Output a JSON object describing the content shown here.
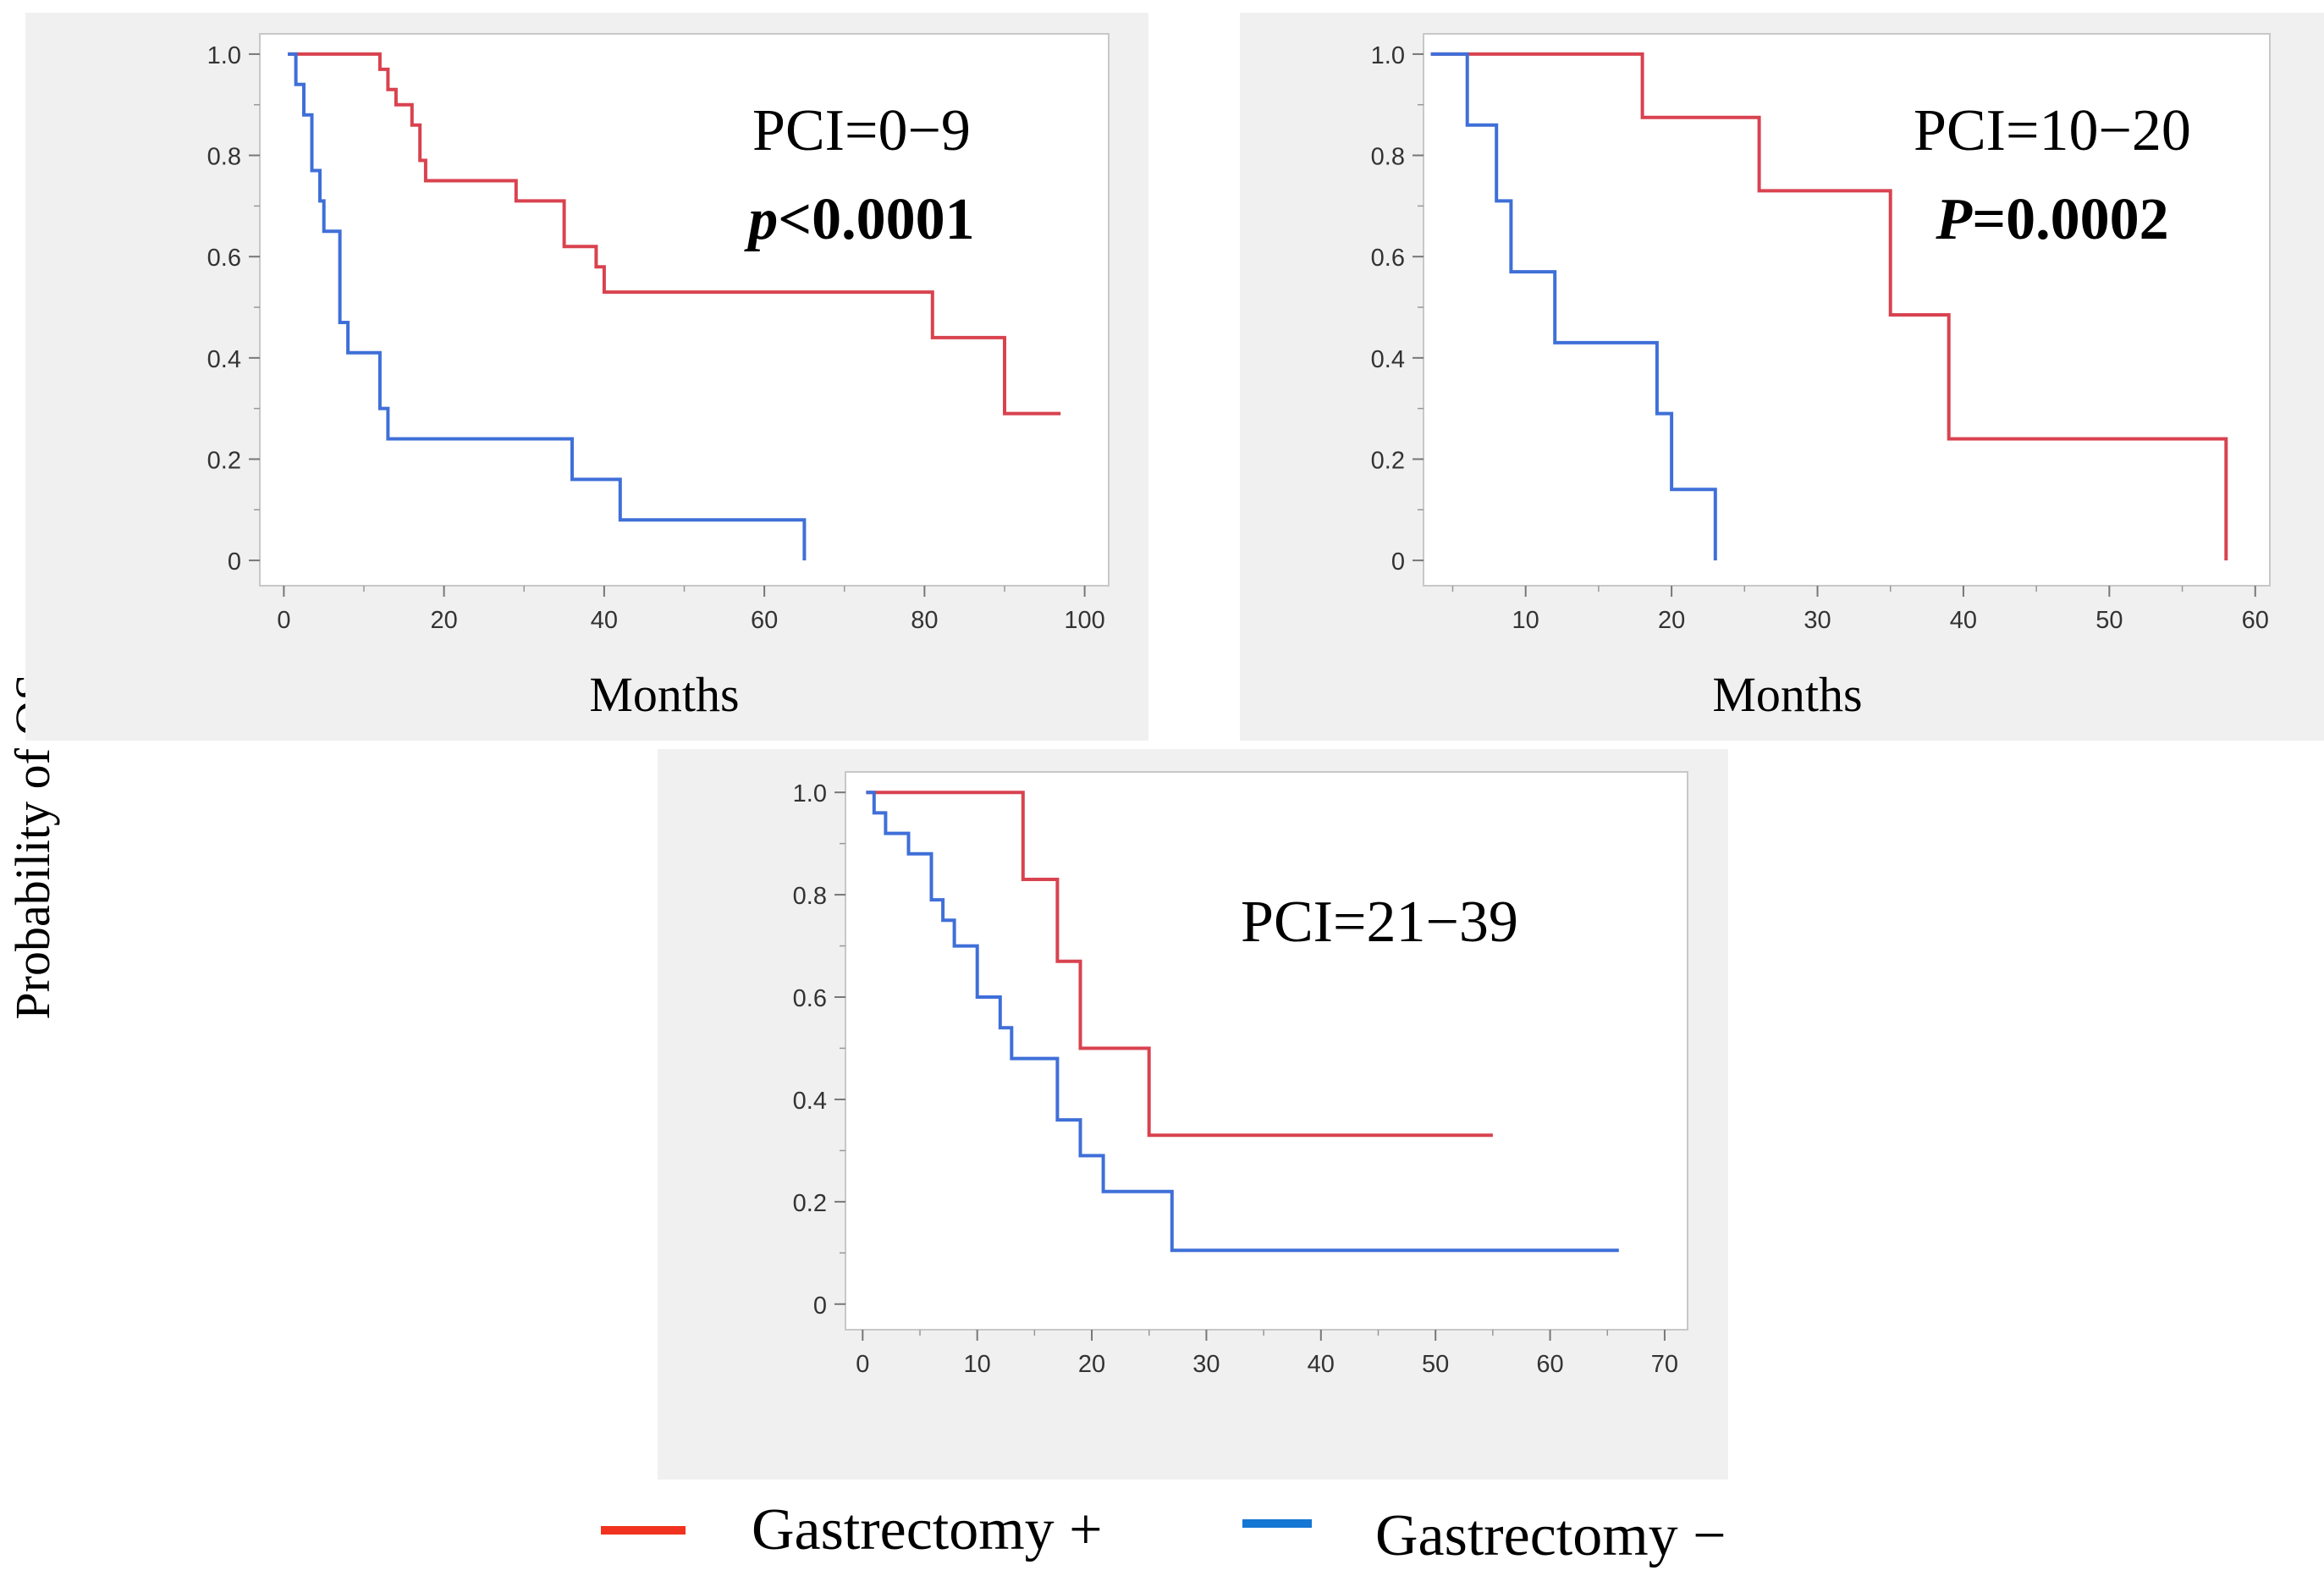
{
  "figure": {
    "ylabel": "Probability of OS",
    "colors": {
      "gastrectomy_plus": "#d9424f",
      "gastrectomy_minus": "#3f6fd8",
      "legend_plus": "#f0321e",
      "legend_minus": "#1577d4",
      "panel_bg": "#f0f0f0",
      "plot_bg": "#ffffff",
      "frame": "#c8c8c8",
      "tick_text": "#333333"
    },
    "legend": {
      "items": [
        {
          "label": "Gastrectomy +",
          "color_key": "legend_plus"
        },
        {
          "label": "Gastrectomy −",
          "color_key": "legend_minus"
        }
      ]
    }
  },
  "chart_data": [
    {
      "type": "line",
      "step": true,
      "title": "PCI=0−9",
      "pvalue_prefix": "p",
      "pvalue_rest": "<0.0001",
      "xlabel": "Months",
      "ylabel": "Probability of OS",
      "xlim": [
        -3,
        103
      ],
      "ylim": [
        -0.05,
        1.04
      ],
      "xticks": [
        0,
        20,
        40,
        60,
        80,
        100
      ],
      "xticklabels": [
        "0",
        "20",
        "40",
        "60",
        "80",
        "100"
      ],
      "xminor": [
        10,
        30,
        50,
        70,
        90
      ],
      "yticks": [
        0,
        0.2,
        0.4,
        0.6,
        0.8,
        1.0
      ],
      "yticklabels": [
        "0",
        "0.2",
        "0.4",
        "0.6",
        "0.8",
        "1.0"
      ],
      "yminor": [
        0.1,
        0.3,
        0.5,
        0.7,
        0.9
      ],
      "series": [
        {
          "name": "Gastrectomy +",
          "color_key": "gastrectomy_plus",
          "points": [
            [
              0.5,
              1.0
            ],
            [
              12,
              1.0
            ],
            [
              12,
              0.97
            ],
            [
              13,
              0.97
            ],
            [
              13,
              0.93
            ],
            [
              14,
              0.93
            ],
            [
              14,
              0.9
            ],
            [
              16,
              0.9
            ],
            [
              16,
              0.86
            ],
            [
              17,
              0.86
            ],
            [
              17,
              0.79
            ],
            [
              17.7,
              0.79
            ],
            [
              17.7,
              0.75
            ],
            [
              29,
              0.75
            ],
            [
              29,
              0.71
            ],
            [
              35,
              0.71
            ],
            [
              35,
              0.62
            ],
            [
              39,
              0.62
            ],
            [
              39,
              0.58
            ],
            [
              40,
              0.58
            ],
            [
              40,
              0.53
            ],
            [
              81,
              0.53
            ],
            [
              81,
              0.44
            ],
            [
              90,
              0.44
            ],
            [
              90,
              0.29
            ],
            [
              97,
              0.29
            ]
          ]
        },
        {
          "name": "Gastrectomy −",
          "color_key": "gastrectomy_minus",
          "points": [
            [
              0.5,
              1.0
            ],
            [
              1.5,
              1.0
            ],
            [
              1.5,
              0.94
            ],
            [
              2.5,
              0.94
            ],
            [
              2.5,
              0.88
            ],
            [
              3.5,
              0.88
            ],
            [
              3.5,
              0.77
            ],
            [
              4.5,
              0.77
            ],
            [
              4.5,
              0.71
            ],
            [
              5,
              0.71
            ],
            [
              5,
              0.65
            ],
            [
              7,
              0.65
            ],
            [
              7,
              0.47
            ],
            [
              8,
              0.47
            ],
            [
              8,
              0.41
            ],
            [
              12,
              0.41
            ],
            [
              12,
              0.3
            ],
            [
              13,
              0.3
            ],
            [
              13,
              0.24
            ],
            [
              36,
              0.24
            ],
            [
              36,
              0.16
            ],
            [
              42,
              0.16
            ],
            [
              42,
              0.08
            ],
            [
              65,
              0.08
            ],
            [
              65,
              0.0
            ]
          ]
        }
      ]
    },
    {
      "type": "line",
      "step": true,
      "title": "PCI=10−20",
      "pvalue_prefix": "P",
      "pvalue_rest": "=0.0002",
      "xlabel": "Months",
      "ylabel": "Probability of OS",
      "xlim": [
        3,
        61
      ],
      "ylim": [
        -0.05,
        1.04
      ],
      "xticks": [
        10,
        20,
        30,
        40,
        50,
        60
      ],
      "xticklabels": [
        "10",
        "20",
        "30",
        "40",
        "50",
        "60"
      ],
      "xminor": [
        5,
        15,
        25,
        35,
        45,
        55
      ],
      "yticks": [
        0,
        0.2,
        0.4,
        0.6,
        0.8,
        1.0
      ],
      "yticklabels": [
        "0",
        "0.2",
        "0.4",
        "0.6",
        "0.8",
        "1.0"
      ],
      "yminor": [
        0.1,
        0.3,
        0.5,
        0.7,
        0.9
      ],
      "series": [
        {
          "name": "Gastrectomy +",
          "color_key": "gastrectomy_plus",
          "points": [
            [
              3.5,
              1.0
            ],
            [
              18,
              1.0
            ],
            [
              18,
              0.875
            ],
            [
              26,
              0.875
            ],
            [
              26,
              0.73
            ],
            [
              35,
              0.73
            ],
            [
              35,
              0.485
            ],
            [
              39,
              0.485
            ],
            [
              39,
              0.24
            ],
            [
              58,
              0.24
            ],
            [
              58,
              0.0
            ]
          ]
        },
        {
          "name": "Gastrectomy −",
          "color_key": "gastrectomy_minus",
          "points": [
            [
              3.5,
              1.0
            ],
            [
              6,
              1.0
            ],
            [
              6,
              0.86
            ],
            [
              8,
              0.86
            ],
            [
              8,
              0.71
            ],
            [
              9,
              0.71
            ],
            [
              9,
              0.57
            ],
            [
              12,
              0.57
            ],
            [
              12,
              0.43
            ],
            [
              19,
              0.43
            ],
            [
              19,
              0.29
            ],
            [
              20,
              0.29
            ],
            [
              20,
              0.14
            ],
            [
              23,
              0.14
            ],
            [
              23,
              0.0
            ]
          ]
        }
      ]
    },
    {
      "type": "line",
      "step": true,
      "title": "PCI=21−39",
      "xlabel": "",
      "ylabel": "Probability of OS",
      "xlim": [
        -1.5,
        72
      ],
      "ylim": [
        -0.05,
        1.04
      ],
      "xticks": [
        0,
        10,
        20,
        30,
        40,
        50,
        60,
        70
      ],
      "xticklabels": [
        "0",
        "10",
        "20",
        "30",
        "40",
        "50",
        "60",
        "70"
      ],
      "xminor": [
        5,
        15,
        25,
        35,
        45,
        55,
        65
      ],
      "yticks": [
        0,
        0.2,
        0.4,
        0.6,
        0.8,
        1.0
      ],
      "yticklabels": [
        "0",
        "0.2",
        "0.4",
        "0.6",
        "0.8",
        "1.0"
      ],
      "yminor": [
        0.1,
        0.3,
        0.5,
        0.7,
        0.9
      ],
      "series": [
        {
          "name": "Gastrectomy +",
          "color_key": "gastrectomy_plus",
          "points": [
            [
              0.3,
              1.0
            ],
            [
              14,
              1.0
            ],
            [
              14,
              0.83
            ],
            [
              17,
              0.83
            ],
            [
              17,
              0.67
            ],
            [
              19,
              0.67
            ],
            [
              19,
              0.5
            ],
            [
              25,
              0.5
            ],
            [
              25,
              0.33
            ],
            [
              55,
              0.33
            ]
          ]
        },
        {
          "name": "Gastrectomy −",
          "color_key": "gastrectomy_minus",
          "points": [
            [
              0.3,
              1.0
            ],
            [
              1,
              1.0
            ],
            [
              1,
              0.96
            ],
            [
              2,
              0.96
            ],
            [
              2,
              0.92
            ],
            [
              4,
              0.92
            ],
            [
              4,
              0.88
            ],
            [
              6,
              0.88
            ],
            [
              6,
              0.79
            ],
            [
              7,
              0.79
            ],
            [
              7,
              0.75
            ],
            [
              8,
              0.75
            ],
            [
              8,
              0.7
            ],
            [
              10,
              0.7
            ],
            [
              10,
              0.6
            ],
            [
              12,
              0.6
            ],
            [
              12,
              0.54
            ],
            [
              13,
              0.54
            ],
            [
              13,
              0.48
            ],
            [
              17,
              0.48
            ],
            [
              17,
              0.36
            ],
            [
              19,
              0.36
            ],
            [
              19,
              0.29
            ],
            [
              21,
              0.29
            ],
            [
              21,
              0.22
            ],
            [
              27,
              0.22
            ],
            [
              27,
              0.105
            ],
            [
              66,
              0.105
            ]
          ]
        }
      ]
    }
  ]
}
